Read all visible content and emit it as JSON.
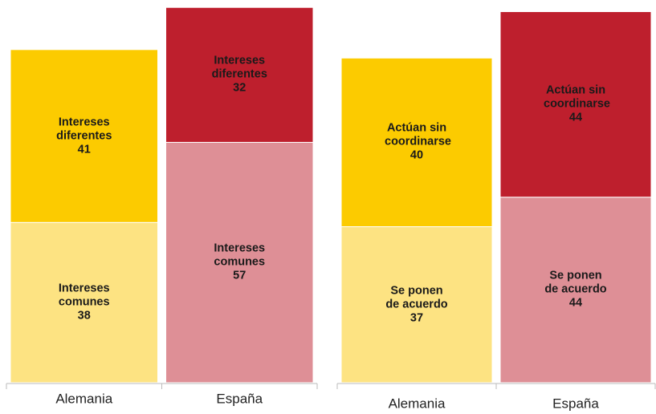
{
  "chart_data": [
    {
      "type": "stacked_bar",
      "categories": [
        "Alemania",
        "España"
      ],
      "series": [
        {
          "name": "Intereses comunes",
          "colors": [
            "#fde382",
            "#de8f96"
          ],
          "values": [
            38,
            57
          ]
        },
        {
          "name": "Intereses diferentes",
          "colors": [
            "#fccb00",
            "#be1f2d"
          ],
          "values": [
            41,
            32
          ]
        }
      ],
      "ylim": [
        0,
        90
      ]
    },
    {
      "type": "stacked_bar",
      "categories": [
        "Alemania",
        "España"
      ],
      "series": [
        {
          "name": "Se ponen de acuerdo",
          "colors": [
            "#fde382",
            "#de8f96"
          ],
          "values": [
            37,
            44
          ]
        },
        {
          "name": "Actúan sin coordinarse",
          "colors": [
            "#fccb00",
            "#be1f2d"
          ],
          "values": [
            40,
            44
          ]
        }
      ],
      "ylim": [
        0,
        90
      ]
    }
  ]
}
